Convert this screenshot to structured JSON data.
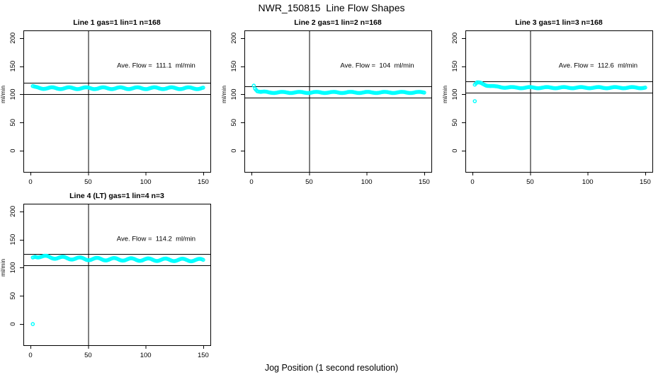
{
  "title": "NWR_150815  Line Flow Shapes",
  "xlabel": "Jog Position (1 second resolution)",
  "ylabel": "ml/min",
  "colors": {
    "points": "#00ffff",
    "axis": "#000000",
    "background": "#ffffff"
  },
  "chart_data": [
    {
      "type": "scatter",
      "title": "Line 1 gas=1 lin=1 n=168",
      "annotation": "Ave. Flow =  111.1  ml/min",
      "ave_flow_ml_min": 111.1,
      "ref_lines_y": [
        121.1,
        101.1
      ],
      "vline_x": 50,
      "xlim": [
        -6.2,
        156.2
      ],
      "ylim": [
        -37.5,
        213.5
      ],
      "xticks": [
        0,
        50,
        100,
        150
      ],
      "yticks": [
        0,
        50,
        100,
        150,
        200
      ],
      "x_start": 2,
      "x_end": 150,
      "x_step": 1,
      "profile": [
        [
          2,
          113.5
        ],
        [
          4,
          112
        ],
        [
          15,
          111
        ],
        [
          150,
          111
        ]
      ],
      "noise": 1.6,
      "outliers": []
    },
    {
      "type": "scatter",
      "title": "Line 2 gas=1 lin=2 n=168",
      "annotation": "Ave. Flow =  104  ml/min",
      "ave_flow_ml_min": 104,
      "ref_lines_y": [
        114,
        94
      ],
      "vline_x": 50,
      "xlim": [
        -6.2,
        156.2
      ],
      "ylim": [
        -37.5,
        213.5
      ],
      "xticks": [
        0,
        50,
        100,
        150
      ],
      "yticks": [
        0,
        50,
        100,
        150,
        200
      ],
      "x_start": 2,
      "x_end": 150,
      "x_step": 1,
      "profile": [
        [
          2,
          116
        ],
        [
          3,
          111
        ],
        [
          5,
          106.5
        ],
        [
          8,
          104.5
        ],
        [
          15,
          103.5
        ],
        [
          150,
          103.5
        ]
      ],
      "noise": 1.0,
      "outliers": []
    },
    {
      "type": "scatter",
      "title": "Line 3 gas=1 lin=3 n=168",
      "annotation": "Ave. Flow =  112.6  ml/min",
      "ave_flow_ml_min": 112.6,
      "ref_lines_y": [
        122.6,
        102.6
      ],
      "vline_x": 50,
      "xlim": [
        -6.2,
        156.2
      ],
      "ylim": [
        -37.5,
        213.5
      ],
      "xticks": [
        0,
        50,
        100,
        150
      ],
      "yticks": [
        0,
        50,
        100,
        150,
        200
      ],
      "x_start": 2,
      "x_end": 150,
      "x_step": 1,
      "profile": [
        [
          2,
          117
        ],
        [
          4,
          120.5
        ],
        [
          7,
          120
        ],
        [
          12,
          116.5
        ],
        [
          20,
          113.5
        ],
        [
          35,
          112
        ],
        [
          150,
          112
        ]
      ],
      "noise": 1.0,
      "outliers": [
        [
          2,
          88
        ]
      ]
    },
    {
      "type": "scatter",
      "title": "Line 4 (LT) gas=1 lin=4 n=3",
      "annotation": "Ave. Flow =  114.2  ml/min",
      "ave_flow_ml_min": 114.2,
      "ref_lines_y": [
        124.2,
        104.2
      ],
      "vline_x": 50,
      "xlim": [
        -6.2,
        156.2
      ],
      "ylim": [
        -37.5,
        213.5
      ],
      "xticks": [
        0,
        50,
        100,
        150
      ],
      "yticks": [
        0,
        50,
        100,
        150,
        200
      ],
      "x_start": 2,
      "x_end": 150,
      "x_step": 1,
      "profile": [
        [
          2,
          118
        ],
        [
          4,
          121
        ],
        [
          10,
          119.5
        ],
        [
          25,
          117.5
        ],
        [
          50,
          115.5
        ],
        [
          90,
          114.5
        ],
        [
          150,
          113.5
        ]
      ],
      "noise": 2.2,
      "outliers": [
        [
          2,
          0
        ]
      ]
    }
  ]
}
